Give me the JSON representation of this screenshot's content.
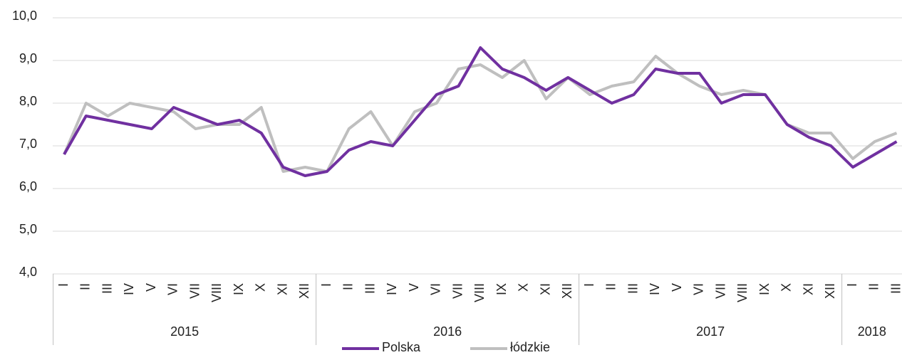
{
  "chart_data": {
    "type": "line",
    "categories": [
      "I",
      "II",
      "III",
      "IV",
      "V",
      "VI",
      "VII",
      "VIII",
      "IX",
      "X",
      "XI",
      "XII",
      "I",
      "II",
      "III",
      "IV",
      "V",
      "VI",
      "VII",
      "VIII",
      "IX",
      "X",
      "XI",
      "XII",
      "I",
      "II",
      "III",
      "IV",
      "V",
      "VI",
      "VII",
      "VIII",
      "IX",
      "X",
      "XI",
      "XII",
      "I",
      "II",
      "III"
    ],
    "x_groups": [
      "2015",
      "2016",
      "2017",
      "2018"
    ],
    "series": [
      {
        "name": "Polska",
        "color": "#7030a0",
        "values": [
          6.8,
          7.7,
          7.6,
          7.5,
          7.4,
          7.9,
          7.7,
          7.5,
          7.6,
          7.3,
          6.5,
          6.3,
          6.4,
          6.9,
          7.1,
          7.0,
          7.6,
          8.2,
          8.4,
          9.3,
          8.8,
          8.6,
          8.3,
          8.6,
          8.3,
          8.0,
          8.2,
          8.8,
          8.7,
          8.7,
          8.0,
          8.2,
          8.2,
          7.5,
          7.2,
          7.0,
          6.5,
          6.8,
          7.1
        ]
      },
      {
        "name": "łódzkie",
        "color": "#bfbfbf",
        "values": [
          6.8,
          8.0,
          7.7,
          8.0,
          7.9,
          7.8,
          7.4,
          7.5,
          7.5,
          7.9,
          6.4,
          6.5,
          6.4,
          7.4,
          7.8,
          7.0,
          7.8,
          8.0,
          8.8,
          8.9,
          8.6,
          9.0,
          8.1,
          8.6,
          8.2,
          8.4,
          8.5,
          9.1,
          8.7,
          8.4,
          8.2,
          8.3,
          8.2,
          7.5,
          7.3,
          7.3,
          6.7,
          7.1,
          7.3
        ]
      }
    ],
    "ylim": [
      4,
      10
    ],
    "yticks": [
      {
        "value": 4,
        "label": "4,0"
      },
      {
        "value": 5,
        "label": "5,0"
      },
      {
        "value": 6,
        "label": "6,0"
      },
      {
        "value": 7,
        "label": "7,0"
      },
      {
        "value": 8,
        "label": "8,0"
      },
      {
        "value": 9,
        "label": "9,0"
      },
      {
        "value": 10,
        "label": "10,0"
      }
    ],
    "grid": true,
    "legend": "bottom"
  }
}
